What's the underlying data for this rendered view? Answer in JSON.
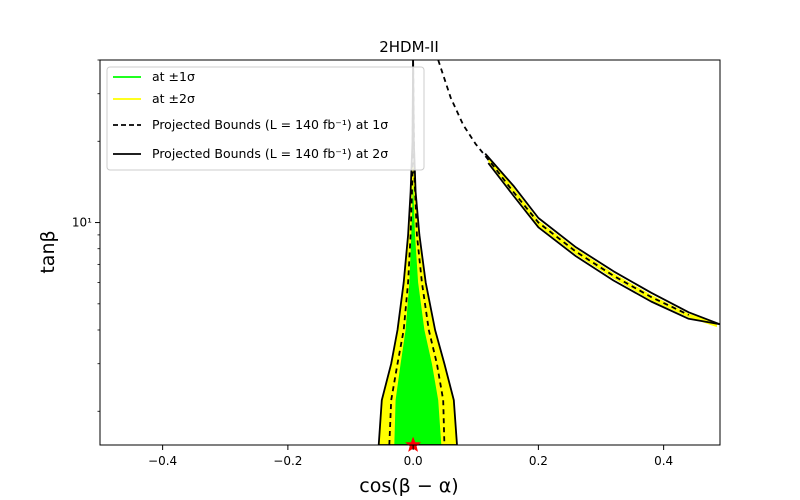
{
  "chart_data": {
    "type": "contour",
    "title": "2HDM-II",
    "xlabel": "cos(β − α)",
    "ylabel": "tanβ",
    "xlim": [
      -0.5,
      0.49
    ],
    "ylim": [
      1.5,
      40
    ],
    "yscale": "log",
    "x_ticks": [
      {
        "value": -0.4,
        "label": "−0.4"
      },
      {
        "value": -0.2,
        "label": "−0.2"
      },
      {
        "value": 0.0,
        "label": "0.0"
      },
      {
        "value": 0.2,
        "label": "0.2"
      },
      {
        "value": 0.4,
        "label": "0.4"
      }
    ],
    "y_ticks": [
      {
        "value": 10,
        "label": "10¹"
      }
    ],
    "legend_position": "top-left",
    "legend": [
      {
        "label": "at ±1σ",
        "color": "#00ff00",
        "style": "solid"
      },
      {
        "label": "at ±2σ",
        "color": "#ffff00",
        "style": "solid"
      },
      {
        "label": "Projected Bounds (L = 140 fb⁻¹) at 1σ",
        "color": "#000000",
        "style": "dashed"
      },
      {
        "label": "Projected Bounds (L = 140 fb⁻¹) at 2σ",
        "color": "#000000",
        "style": "solid"
      }
    ],
    "regions": [
      {
        "name": "2sigma_central",
        "fill": "#ffff00",
        "points": [
          [
            -0.055,
            1.45
          ],
          [
            -0.05,
            2.2
          ],
          [
            -0.035,
            3.0
          ],
          [
            -0.025,
            4.0
          ],
          [
            -0.015,
            6.0
          ],
          [
            -0.008,
            9.0
          ],
          [
            -0.004,
            13.0
          ],
          [
            0.0,
            17.0
          ],
          [
            0.004,
            13.0
          ],
          [
            0.01,
            9.0
          ],
          [
            0.02,
            6.0
          ],
          [
            0.035,
            4.0
          ],
          [
            0.05,
            3.0
          ],
          [
            0.065,
            2.2
          ],
          [
            0.07,
            1.45
          ]
        ]
      },
      {
        "name": "1sigma_central",
        "fill": "#00ff00",
        "points": [
          [
            -0.03,
            1.45
          ],
          [
            -0.028,
            2.2
          ],
          [
            -0.02,
            3.0
          ],
          [
            -0.012,
            4.0
          ],
          [
            -0.006,
            6.0
          ],
          [
            -0.003,
            9.0
          ],
          [
            0.0,
            14.0
          ],
          [
            0.003,
            9.0
          ],
          [
            0.008,
            6.0
          ],
          [
            0.018,
            4.0
          ],
          [
            0.03,
            3.0
          ],
          [
            0.04,
            2.2
          ],
          [
            0.045,
            1.45
          ]
        ]
      },
      {
        "name": "2sigma_wrong_sign_band",
        "fill": "#ffff00",
        "points": [
          [
            0.12,
            17.5
          ],
          [
            0.16,
            13.5
          ],
          [
            0.2,
            10.2
          ],
          [
            0.26,
            8.0
          ],
          [
            0.32,
            6.5
          ],
          [
            0.38,
            5.4
          ],
          [
            0.44,
            4.6
          ],
          [
            0.485,
            4.25
          ],
          [
            0.485,
            4.1
          ],
          [
            0.44,
            4.45
          ],
          [
            0.38,
            5.15
          ],
          [
            0.32,
            6.2
          ],
          [
            0.26,
            7.6
          ],
          [
            0.2,
            9.7
          ],
          [
            0.16,
            12.8
          ],
          [
            0.12,
            16.8
          ]
        ]
      }
    ],
    "lines": [
      {
        "name": "projected_2sigma_central",
        "style": "solid",
        "color": "#000000",
        "points": [
          [
            -0.055,
            1.45
          ],
          [
            -0.05,
            2.2
          ],
          [
            -0.035,
            3.0
          ],
          [
            -0.025,
            4.0
          ],
          [
            -0.015,
            6.0
          ],
          [
            -0.008,
            9.0
          ],
          [
            -0.004,
            13.0
          ],
          [
            -0.001,
            20.0
          ],
          [
            0.0,
            40.0
          ],
          [
            0.001,
            20.0
          ],
          [
            0.004,
            13.0
          ],
          [
            0.01,
            9.0
          ],
          [
            0.02,
            6.0
          ],
          [
            0.035,
            4.0
          ],
          [
            0.05,
            3.0
          ],
          [
            0.065,
            2.2
          ],
          [
            0.07,
            1.45
          ],
          [
            -0.055,
            1.45
          ]
        ]
      },
      {
        "name": "projected_1sigma_central",
        "style": "dashed",
        "color": "#000000",
        "points": [
          [
            -0.038,
            1.5
          ],
          [
            -0.035,
            2.2
          ],
          [
            -0.025,
            3.0
          ],
          [
            -0.015,
            4.0
          ],
          [
            -0.008,
            6.0
          ],
          [
            -0.004,
            9.0
          ],
          [
            -0.001,
            15.0
          ],
          [
            0.0,
            40.0
          ],
          [
            0.002,
            15.0
          ],
          [
            0.006,
            9.0
          ],
          [
            0.014,
            6.0
          ],
          [
            0.025,
            4.0
          ],
          [
            0.038,
            3.0
          ],
          [
            0.048,
            2.2
          ],
          [
            0.05,
            1.5
          ]
        ]
      },
      {
        "name": "projected_2sigma_band_upper",
        "style": "solid",
        "color": "#000000",
        "points": [
          [
            0.115,
            18.0
          ],
          [
            0.16,
            13.7
          ],
          [
            0.2,
            10.4
          ],
          [
            0.26,
            8.1
          ],
          [
            0.32,
            6.6
          ],
          [
            0.38,
            5.5
          ],
          [
            0.44,
            4.65
          ],
          [
            0.49,
            4.2
          ]
        ]
      },
      {
        "name": "projected_2sigma_band_lower",
        "style": "solid",
        "color": "#000000",
        "points": [
          [
            0.12,
            16.6
          ],
          [
            0.16,
            12.6
          ],
          [
            0.2,
            9.6
          ],
          [
            0.26,
            7.5
          ],
          [
            0.32,
            6.1
          ],
          [
            0.38,
            5.1
          ],
          [
            0.44,
            4.4
          ],
          [
            0.49,
            4.2
          ]
        ]
      },
      {
        "name": "projected_1sigma_wrong_sign",
        "style": "dashed",
        "color": "#000000",
        "points": [
          [
            0.04,
            40.0
          ],
          [
            0.06,
            29.0
          ],
          [
            0.08,
            23.0
          ],
          [
            0.1,
            19.5
          ],
          [
            0.13,
            16.0
          ],
          [
            0.16,
            13.0
          ],
          [
            0.2,
            10.0
          ],
          [
            0.26,
            7.8
          ],
          [
            0.32,
            6.35
          ],
          [
            0.38,
            5.3
          ],
          [
            0.44,
            4.55
          ]
        ]
      }
    ],
    "markers": [
      {
        "name": "sm_point",
        "x": 0.0,
        "y": 1.5,
        "shape": "star",
        "color": "#ff0000"
      }
    ]
  }
}
